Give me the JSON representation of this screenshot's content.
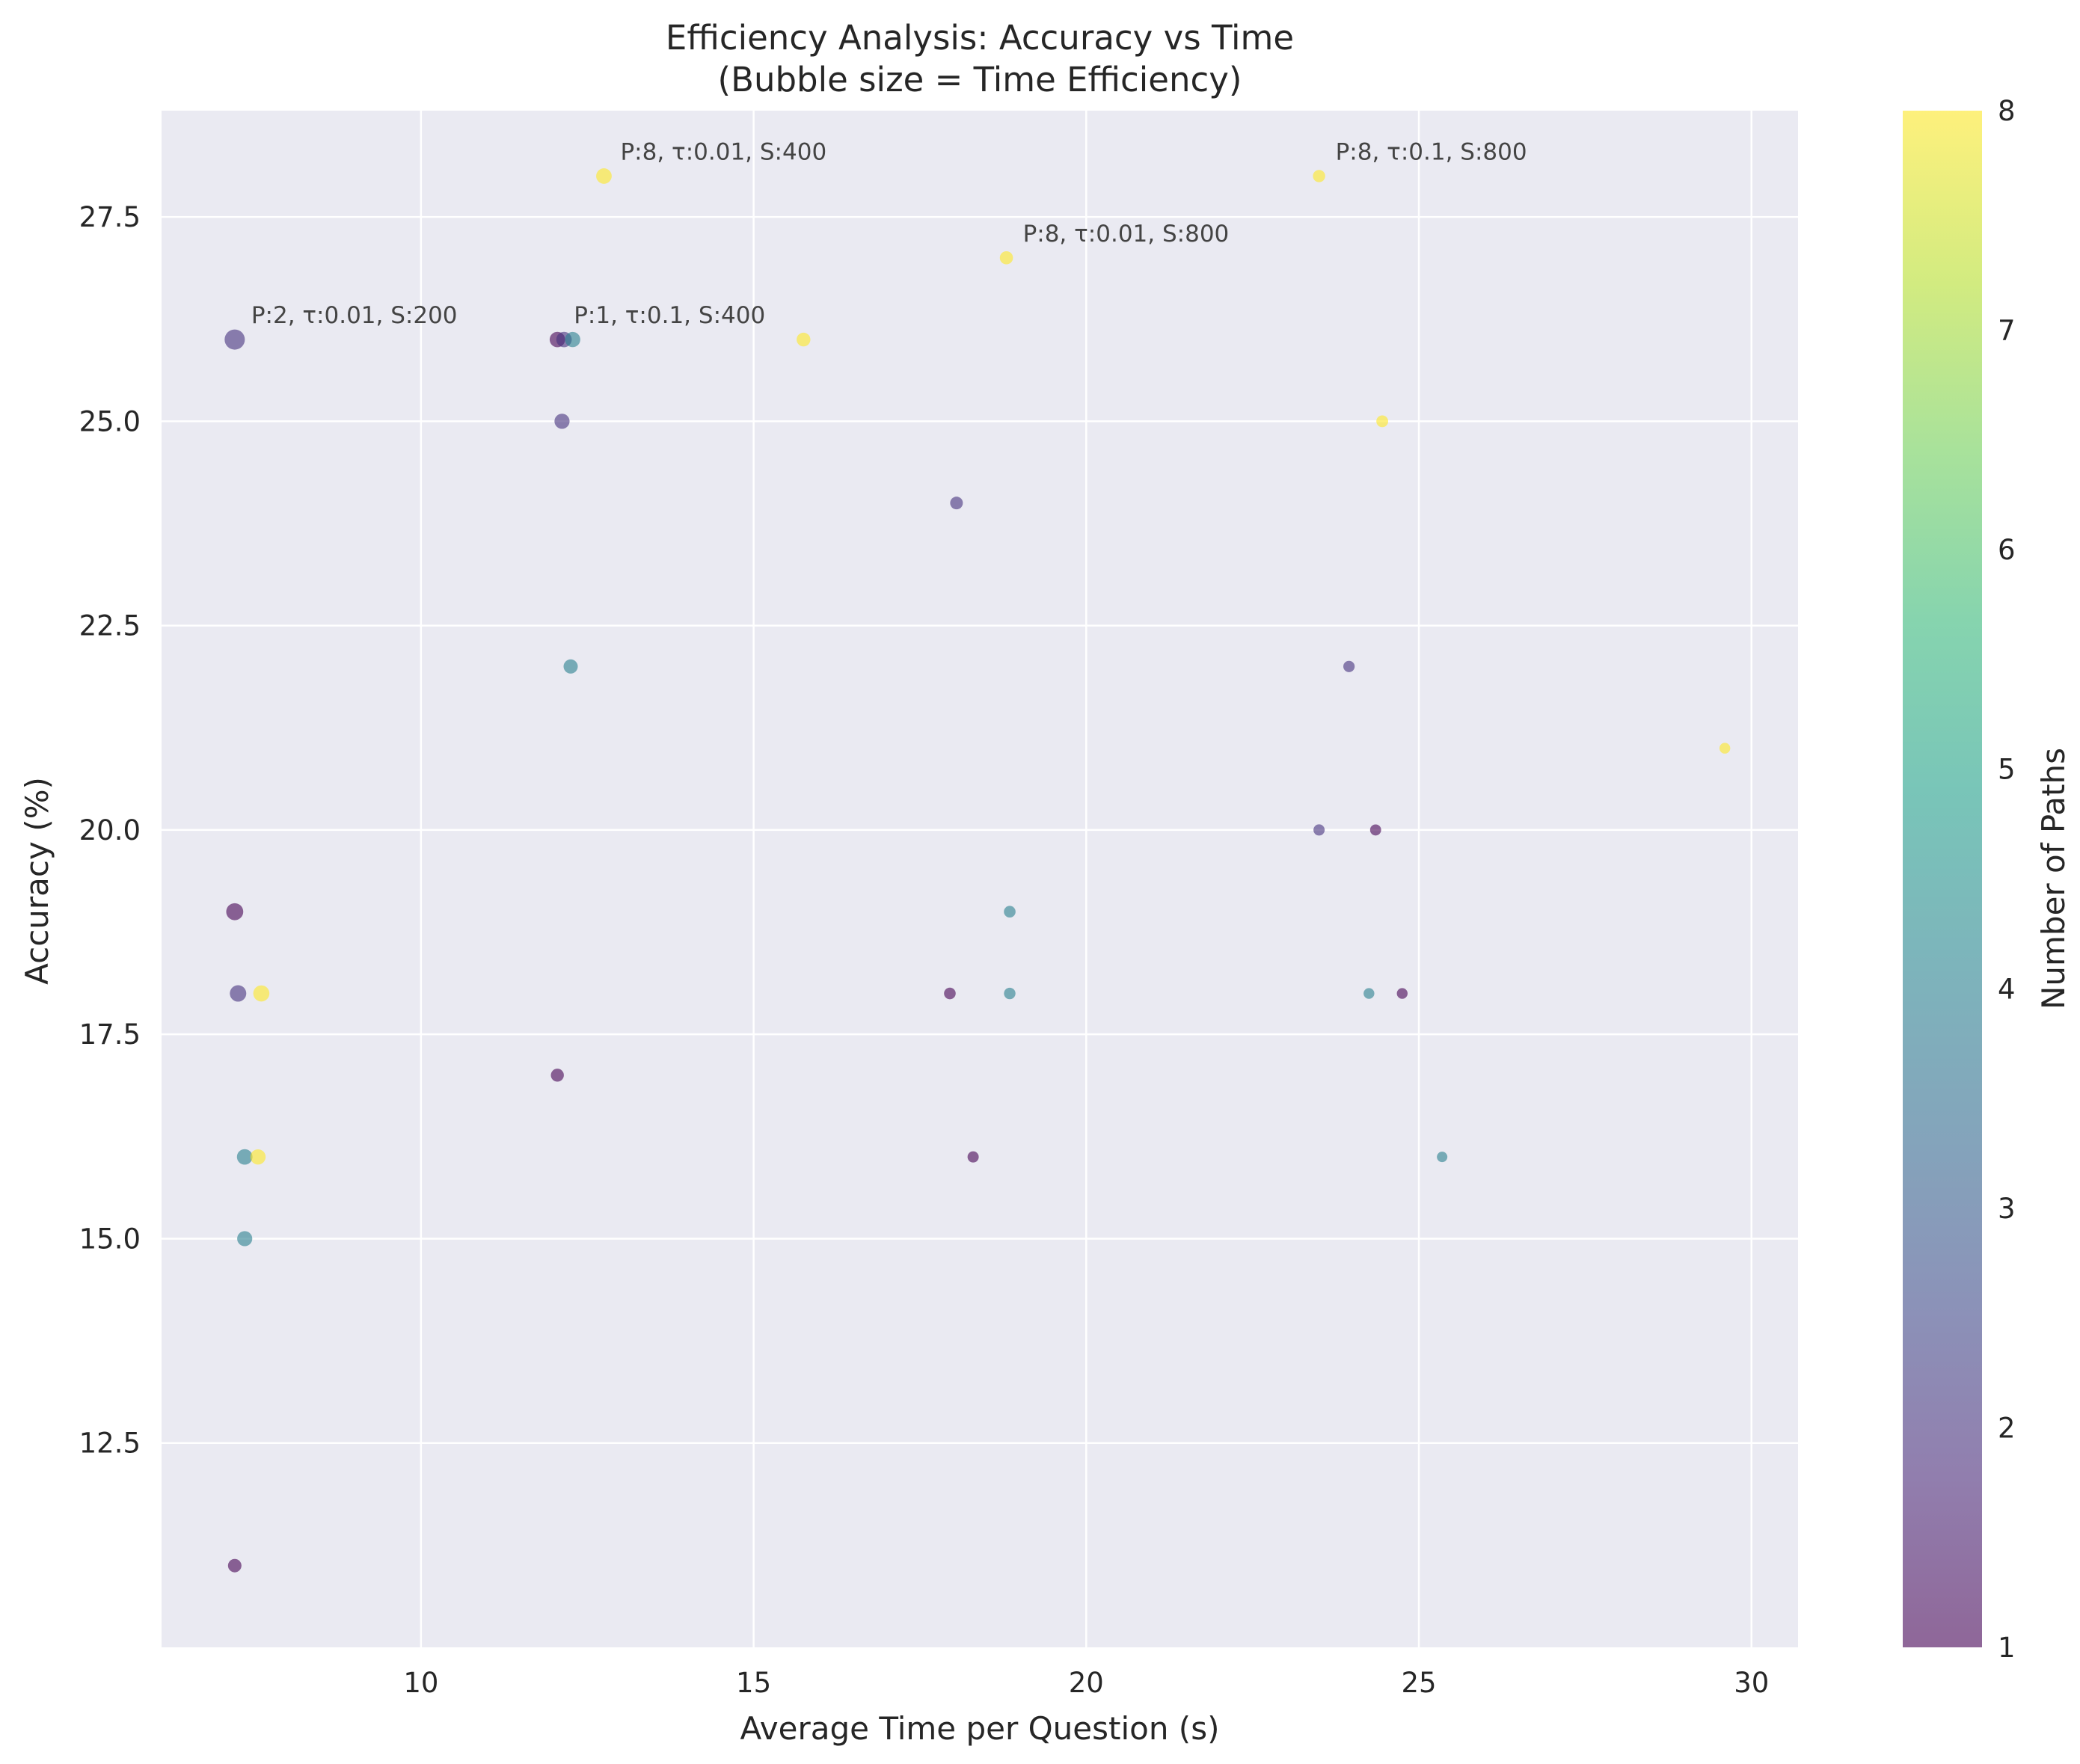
{
  "chart_data": {
    "type": "scatter",
    "title": "Efficiency Analysis: Accuracy vs Time",
    "subtitle": "(Bubble size = Time Efficiency)",
    "xlabel": "Average Time per Question (s)",
    "ylabel": "Accuracy (%)",
    "xlim": [
      6.1,
      30.7
    ],
    "ylim": [
      10.0,
      28.8
    ],
    "x_ticks": [
      10,
      15,
      20,
      25,
      30
    ],
    "y_ticks": [
      12.5,
      15.0,
      17.5,
      20.0,
      22.5,
      25.0,
      27.5
    ],
    "x_tick_labels": [
      "10",
      "15",
      "20",
      "25",
      "30"
    ],
    "y_tick_labels": [
      "12.5",
      "15.0",
      "17.5",
      "20.0",
      "22.5",
      "25.0",
      "27.5"
    ],
    "grid": true,
    "colorbar": {
      "label": "Number of Paths",
      "colormap": "viridis",
      "min": 1,
      "max": 8,
      "ticks": [
        "1",
        "2",
        "3",
        "4",
        "5",
        "6",
        "7",
        "8"
      ]
    },
    "size_encoding": "Time Efficiency (accuracy / time)",
    "points": [
      {
        "x": 7.2,
        "y": 26,
        "paths": 2
      },
      {
        "x": 7.2,
        "y": 19,
        "paths": 1
      },
      {
        "x": 7.25,
        "y": 18,
        "paths": 2
      },
      {
        "x": 7.6,
        "y": 18,
        "paths": 8
      },
      {
        "x": 7.35,
        "y": 16,
        "paths": 4
      },
      {
        "x": 7.55,
        "y": 16,
        "paths": 8
      },
      {
        "x": 7.35,
        "y": 15,
        "paths": 4
      },
      {
        "x": 7.2,
        "y": 11,
        "paths": 1
      },
      {
        "x": 12.75,
        "y": 28,
        "paths": 8
      },
      {
        "x": 12.05,
        "y": 26,
        "paths": 1
      },
      {
        "x": 12.15,
        "y": 26,
        "paths": 2
      },
      {
        "x": 12.28,
        "y": 26,
        "paths": 4
      },
      {
        "x": 12.12,
        "y": 25,
        "paths": 2
      },
      {
        "x": 12.25,
        "y": 22,
        "paths": 4
      },
      {
        "x": 12.05,
        "y": 17,
        "paths": 1
      },
      {
        "x": 15.75,
        "y": 26,
        "paths": 8
      },
      {
        "x": 18.05,
        "y": 24,
        "paths": 2
      },
      {
        "x": 18.8,
        "y": 27,
        "paths": 8
      },
      {
        "x": 17.95,
        "y": 18,
        "paths": 1
      },
      {
        "x": 18.85,
        "y": 19,
        "paths": 4
      },
      {
        "x": 18.85,
        "y": 18,
        "paths": 4
      },
      {
        "x": 18.3,
        "y": 16,
        "paths": 1
      },
      {
        "x": 23.5,
        "y": 28,
        "paths": 8
      },
      {
        "x": 24.45,
        "y": 25,
        "paths": 8
      },
      {
        "x": 23.95,
        "y": 22,
        "paths": 2
      },
      {
        "x": 23.5,
        "y": 20,
        "paths": 2
      },
      {
        "x": 24.35,
        "y": 20,
        "paths": 1
      },
      {
        "x": 24.25,
        "y": 18,
        "paths": 4
      },
      {
        "x": 24.75,
        "y": 18,
        "paths": 1
      },
      {
        "x": 25.35,
        "y": 16,
        "paths": 4
      },
      {
        "x": 29.6,
        "y": 21,
        "paths": 8
      }
    ],
    "annotations": [
      {
        "x": 7.2,
        "y": 26,
        "text": "P:2, τ:0.01, S:200"
      },
      {
        "x": 12.75,
        "y": 28,
        "text": "P:8, τ:0.01, S:400"
      },
      {
        "x": 12.05,
        "y": 26,
        "text": "P:1, τ:0.1, S:400"
      },
      {
        "x": 18.8,
        "y": 27,
        "text": "P:8, τ:0.01, S:800"
      },
      {
        "x": 23.5,
        "y": 28,
        "text": "P:8, τ:0.1, S:800"
      }
    ]
  }
}
